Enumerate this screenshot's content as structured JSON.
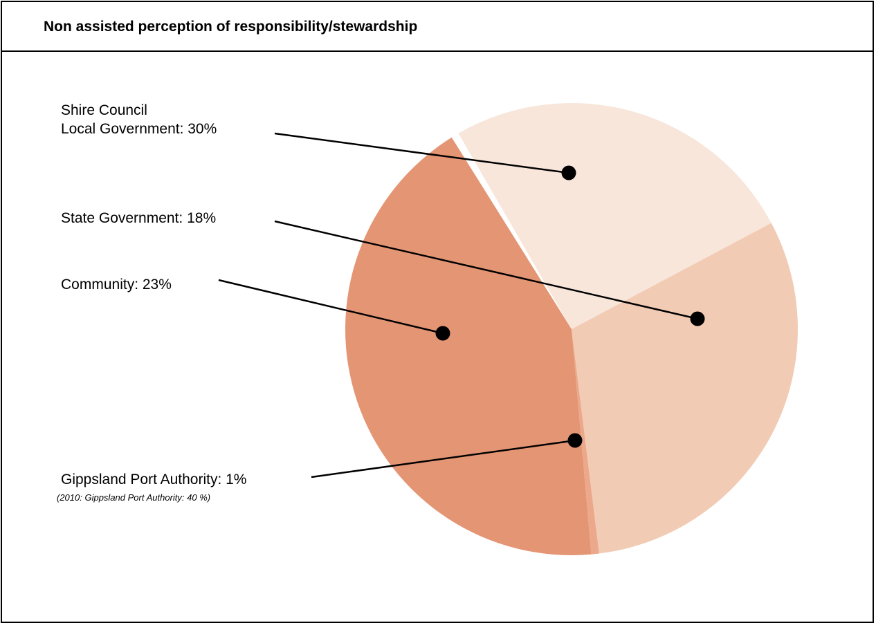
{
  "title": "Non assisted perception of responsibility/stewardship",
  "chart_data": {
    "type": "pie",
    "title": "Non assisted perception of responsibility/stewardship",
    "slices": [
      {
        "label_lines": [
          "Shire Council",
          "Local Government:  30%"
        ],
        "value": 30,
        "color": "#f8e6db"
      },
      {
        "label_lines": [
          "State Government:  18%"
        ],
        "value": 18,
        "color": "#f2cbb4"
      },
      {
        "label_lines": [
          "Gippsland Port Authority:  1%"
        ],
        "value": 1,
        "color": "#eba88a"
      },
      {
        "label_lines": [
          "Community:  23%"
        ],
        "value": 23,
        "color": "#e49574"
      }
    ],
    "annotations": [
      "(2010:  Gippsland Port Authority:  40 %)"
    ]
  }
}
